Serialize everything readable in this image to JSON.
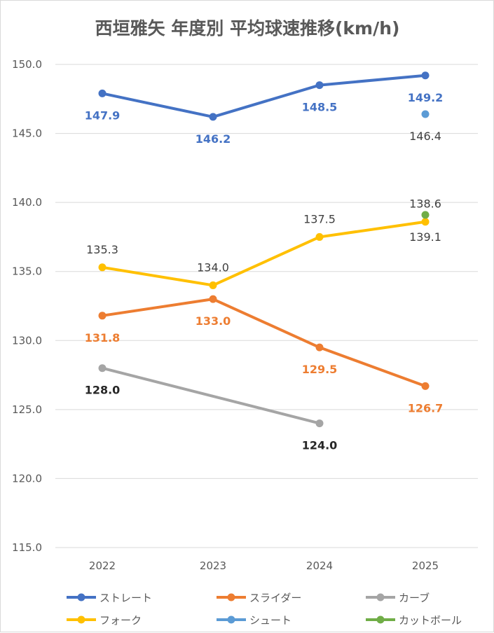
{
  "chart_data": {
    "type": "line",
    "title": "西垣雅矢 年度別 平均球速推移(km/h)",
    "categories": [
      "2022",
      "2023",
      "2024",
      "2025"
    ],
    "ylim": [
      115,
      150
    ],
    "yticks": [
      "150.0",
      "145.0",
      "140.0",
      "135.0",
      "130.0",
      "125.0",
      "120.0",
      "115.0"
    ],
    "ytick_values": [
      150,
      145,
      140,
      135,
      130,
      125,
      120,
      115
    ],
    "grid": true,
    "legend_position": "bottom",
    "series": [
      {
        "name": "ストレート",
        "color": "#4472c4",
        "values": [
          147.9,
          146.2,
          148.5,
          149.2
        ],
        "labels": [
          "147.9",
          "146.2",
          "148.5",
          "149.2"
        ],
        "label_color": "#4472c4",
        "label_pos": [
          "below",
          "below",
          "below",
          "below"
        ]
      },
      {
        "name": "スライダー",
        "color": "#ed7d31",
        "values": [
          131.8,
          133.0,
          129.5,
          126.7
        ],
        "labels": [
          "131.8",
          "133.0",
          "129.5",
          "126.7"
        ],
        "label_color": "#ed7d31",
        "label_pos": [
          "below",
          "below",
          "below",
          "below"
        ]
      },
      {
        "name": "カーブ",
        "color": "#a5a5a5",
        "values": [
          128.0,
          null,
          124.0,
          null
        ],
        "labels": [
          "128.0",
          null,
          "124.0",
          null
        ],
        "label_color": "#262626",
        "label_pos": [
          "below",
          "below",
          "below",
          "below"
        ]
      },
      {
        "name": "フォーク",
        "color": "#ffc000",
        "values": [
          135.3,
          134.0,
          137.5,
          138.6
        ],
        "labels": [
          "135.3",
          "134.0",
          "137.5",
          "138.6"
        ],
        "label_color": "#404040",
        "label_pos": [
          "above",
          "above",
          "above",
          "above"
        ]
      },
      {
        "name": "シュート",
        "color": "#5b9bd5",
        "values": [
          null,
          null,
          null,
          146.4
        ],
        "labels": [
          null,
          null,
          null,
          "146.4"
        ],
        "label_color": "#404040",
        "label_pos": [
          "below",
          "below",
          "below",
          "below"
        ]
      },
      {
        "name": "カットボール",
        "color": "#70ad47",
        "values": [
          null,
          null,
          null,
          139.1
        ],
        "labels": [
          null,
          null,
          null,
          "139.1"
        ],
        "label_color": "#404040",
        "label_pos": [
          "below",
          "below",
          "below",
          "below"
        ]
      }
    ]
  }
}
